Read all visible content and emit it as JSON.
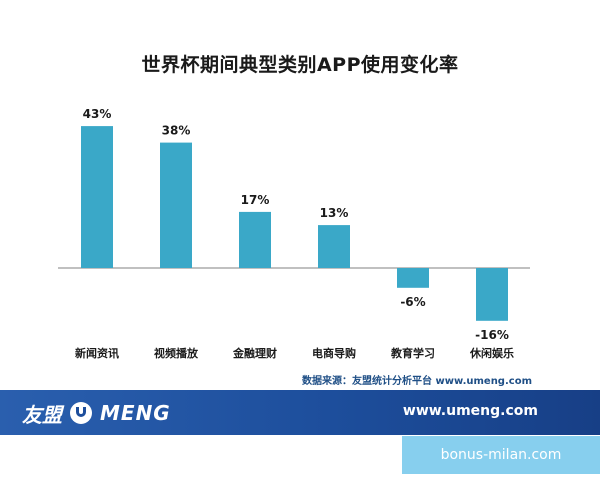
{
  "chart_data": {
    "type": "bar",
    "title": "世界杯期间典型类别APP使用变化率",
    "categories": [
      "新闻资讯",
      "视频播放",
      "金融理财",
      "电商导购",
      "教育学习",
      "休闲娱乐"
    ],
    "values": [
      43,
      38,
      17,
      13,
      -6,
      -16
    ],
    "data_labels": [
      "43%",
      "38%",
      "17%",
      "13%",
      "-6%",
      "-16%"
    ],
    "bar_color": "#3aa8c8",
    "axis_color": "#9a9a9a",
    "ylim": [
      -20,
      50
    ],
    "grid": false,
    "legend": "none"
  },
  "source_note": "数据来源：友盟统计分析平台 www.umeng.com",
  "footer": {
    "brand_cn": "友盟",
    "brand_en": "MENG",
    "url": "www.umeng.com",
    "bg_color": "#1d4e9c"
  },
  "watermark": "bonus-milan.com"
}
